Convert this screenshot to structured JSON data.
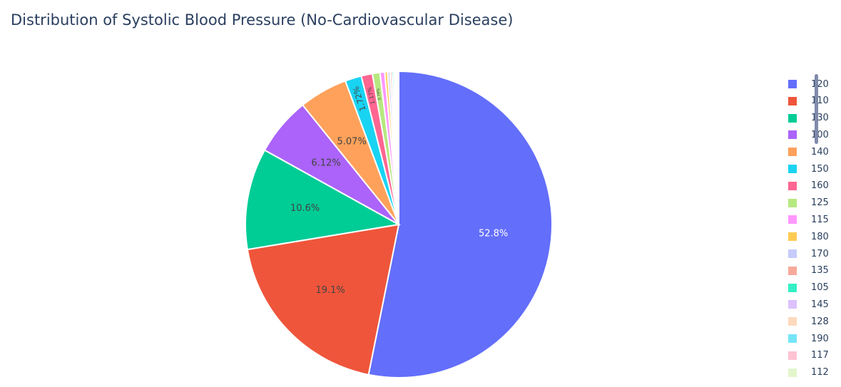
{
  "chart_data": {
    "type": "pie",
    "title": "Distribution of Systolic Blood Pressure (No-Cardiovascular Disease)",
    "slices": [
      {
        "label": "120",
        "percent": 52.8,
        "color": "#636efa",
        "text": "52.8%"
      },
      {
        "label": "110",
        "percent": 19.1,
        "color": "#ef553b",
        "text": "19.1%"
      },
      {
        "label": "130",
        "percent": 10.6,
        "color": "#00cc96",
        "text": "10.6%"
      },
      {
        "label": "100",
        "percent": 6.12,
        "color": "#ab63fa",
        "text": "6.12%"
      },
      {
        "label": "140",
        "percent": 5.07,
        "color": "#ffa15a",
        "text": "5.07%"
      },
      {
        "label": "150",
        "percent": 1.72,
        "color": "#19d3f3",
        "text": "1.72%"
      },
      {
        "label": "160",
        "percent": 1.17,
        "color": "#ff6692",
        "text": "1.17%"
      },
      {
        "label": "125",
        "percent": 0.79,
        "color": "#b6e880",
        "text": "0.79%"
      },
      {
        "label": "115",
        "percent": 0.5,
        "color": "#ff97ff",
        "text": ""
      },
      {
        "label": "180",
        "percent": 0.3,
        "color": "#fecb52",
        "text": ""
      },
      {
        "label": "170",
        "percent": 0.25,
        "color": "#c6cbfb",
        "text": ""
      },
      {
        "label": "135",
        "percent": 0.2,
        "color": "#f7a99b",
        "text": ""
      },
      {
        "label": "105",
        "percent": 0.18,
        "color": "#33f0c5",
        "text": ""
      },
      {
        "label": "145",
        "percent": 0.15,
        "color": "#ddc1fd",
        "text": ""
      },
      {
        "label": "128",
        "percent": 0.12,
        "color": "#ffd9bd",
        "text": ""
      },
      {
        "label": "190",
        "percent": 0.1,
        "color": "#75e5f8",
        "text": ""
      },
      {
        "label": "117",
        "percent": 0.08,
        "color": "#ffc2d3",
        "text": ""
      },
      {
        "label": "112",
        "percent": 0.07,
        "color": "#e2f6cc",
        "text": ""
      }
    ],
    "legend_position": "right",
    "direction": "clockwise",
    "sort": "descending"
  }
}
